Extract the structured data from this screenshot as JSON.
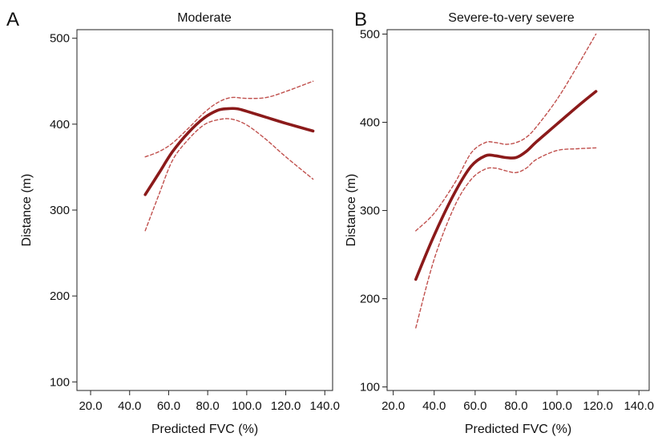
{
  "figure": {
    "background": "#ffffff",
    "line_color": "#8b1a1a",
    "ci_color": "#c0504d"
  },
  "chart_data": [
    {
      "type": "line",
      "panel_label": "A",
      "title": "Moderate",
      "xlabel": "Predicted FVC (%)",
      "ylabel": "Distance (m)",
      "xlim": [
        13,
        144
      ],
      "ylim": [
        90,
        510
      ],
      "xticks": [
        "20.0",
        "40.0",
        "60.0",
        "80.0",
        "100.0",
        "120.0",
        "140.0"
      ],
      "xtick_values": [
        20,
        40,
        60,
        80,
        100,
        120,
        140
      ],
      "yticks": [
        "100",
        "200",
        "300",
        "400",
        "500"
      ],
      "ytick_values": [
        100,
        200,
        300,
        400,
        500
      ],
      "grid": false,
      "series": [
        {
          "role": "fit",
          "dashed": false,
          "x": [
            48,
            55,
            62,
            70,
            78,
            85,
            90,
            95,
            100,
            110,
            120,
            134
          ],
          "y": [
            318,
            343,
            368,
            390,
            407,
            416,
            418,
            418,
            415,
            408,
            401,
            392
          ]
        },
        {
          "role": "upper",
          "dashed": true,
          "x": [
            48,
            55,
            62,
            70,
            78,
            85,
            92,
            100,
            110,
            120,
            134
          ],
          "y": [
            362,
            368,
            378,
            395,
            413,
            425,
            431,
            430,
            431,
            438,
            450
          ]
        },
        {
          "role": "lower",
          "dashed": true,
          "x": [
            48,
            55,
            62,
            70,
            78,
            85,
            92,
            100,
            110,
            120,
            134
          ],
          "y": [
            276,
            318,
            358,
            382,
            399,
            405,
            406,
            399,
            382,
            362,
            336
          ]
        }
      ]
    },
    {
      "type": "line",
      "panel_label": "B",
      "title": "Severe-to-very severe",
      "xlabel": "Predicted FVC (%)",
      "ylabel": "Distance (m)",
      "xlim": [
        17,
        145
      ],
      "ylim": [
        96,
        505
      ],
      "xticks": [
        "20.0",
        "40.0",
        "60.0",
        "80.0",
        "100.0",
        "120.0",
        "140.0"
      ],
      "xtick_values": [
        20,
        40,
        60,
        80,
        100,
        120,
        140
      ],
      "yticks": [
        "100",
        "200",
        "300",
        "400",
        "500"
      ],
      "ytick_values": [
        100,
        200,
        300,
        400,
        500
      ],
      "grid": false,
      "series": [
        {
          "role": "fit",
          "dashed": false,
          "x": [
            31,
            40,
            50,
            58,
            65,
            70,
            75,
            80,
            85,
            90,
            100,
            110,
            119
          ],
          "y": [
            222,
            272,
            320,
            350,
            362,
            362,
            360,
            360,
            367,
            378,
            398,
            418,
            435
          ]
        },
        {
          "role": "upper",
          "dashed": true,
          "x": [
            31,
            40,
            50,
            58,
            65,
            70,
            75,
            80,
            85,
            90,
            100,
            110,
            119
          ],
          "y": [
            277,
            297,
            331,
            365,
            377,
            377,
            375,
            377,
            383,
            395,
            426,
            464,
            500
          ]
        },
        {
          "role": "lower",
          "dashed": true,
          "x": [
            31,
            40,
            50,
            58,
            65,
            70,
            75,
            80,
            85,
            90,
            100,
            110,
            119
          ],
          "y": [
            167,
            245,
            305,
            335,
            347,
            348,
            345,
            343,
            348,
            358,
            368,
            370,
            371
          ]
        }
      ]
    }
  ]
}
